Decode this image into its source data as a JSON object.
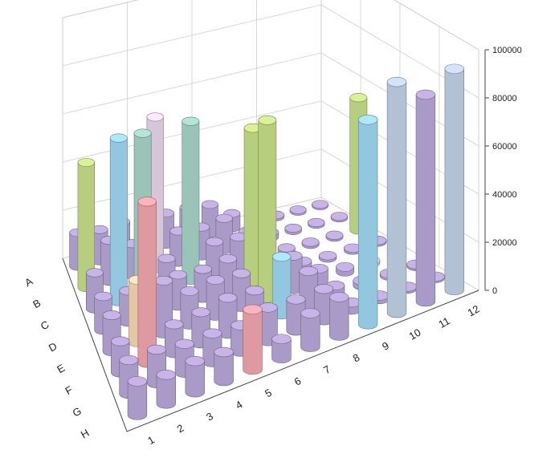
{
  "chart_data": {
    "type": "bar3d",
    "rows": [
      "A",
      "B",
      "C",
      "D",
      "E",
      "F",
      "G",
      "H"
    ],
    "columns": [
      "1",
      "2",
      "3",
      "4",
      "5",
      "6",
      "7",
      "8",
      "9",
      "10",
      "11",
      "12"
    ],
    "zlim": [
      0,
      100000
    ],
    "zticks": [
      "0",
      "20000",
      "40000",
      "60000",
      "80000",
      "100000"
    ],
    "grid": true,
    "colors": {
      "default": "#b9a7d8",
      "green": "#c8e08a",
      "blue": "#9fd8f2",
      "teal": "#a7d5c8",
      "steel": "#c3d2e6",
      "pink": "#f2a6ae",
      "lightpink": "#ead7ea",
      "peach": "#f8d8b5"
    },
    "values": [
      [
        14000,
        13000,
        14000,
        14000,
        13000,
        13000,
        12000,
        6000,
        2000,
        800,
        700,
        500
      ],
      [
        52000,
        17000,
        13000,
        63000,
        13000,
        12000,
        13000,
        5000,
        2000,
        1000,
        700,
        600
      ],
      [
        15000,
        68000,
        67000,
        12000,
        66000,
        13000,
        12000,
        4000,
        1500,
        900,
        800,
        55000
      ],
      [
        14000,
        13000,
        12000,
        13000,
        12000,
        13000,
        64000,
        5000,
        2000,
        1000,
        800,
        700
      ],
      [
        15000,
        26000,
        22000,
        14000,
        15000,
        14000,
        74000,
        14000,
        5000,
        2000,
        1000,
        700
      ],
      [
        13000,
        67000,
        12000,
        13000,
        15000,
        14000,
        24000,
        14000,
        4000,
        2000,
        900,
        700
      ],
      [
        14000,
        14000,
        12000,
        12000,
        11000,
        14000,
        13000,
        13000,
        3000,
        1500,
        800,
        600
      ],
      [
        14000,
        12000,
        13000,
        12000,
        25000,
        8000,
        14000,
        16000,
        85000,
        96000,
        86000,
        92000
      ]
    ],
    "highlight_colors": {
      "0": {
        "0": "default"
      },
      "1": {
        "0": "green",
        "3": "lightpink"
      },
      "2": {
        "1": "blue",
        "2": "teal",
        "4": "teal",
        "11": "green"
      },
      "3": {
        "6": "green"
      },
      "4": {
        "1": "peach",
        "6": "green",
        "10": "steel"
      },
      "5": {
        "1": "pink",
        "6": "blue"
      },
      "6": {},
      "7": {
        "4": "pink",
        "8": "blue",
        "9": "steel",
        "11": "steel"
      }
    }
  }
}
